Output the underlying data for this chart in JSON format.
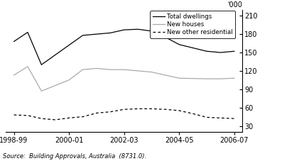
{
  "total_x": [
    0,
    0.5,
    1,
    2,
    2.5,
    3,
    3.5,
    4,
    4.5,
    5,
    5.5,
    6,
    7,
    7.5,
    8
  ],
  "total_y": [
    168,
    183,
    130,
    162,
    178,
    180,
    182,
    187,
    188,
    185,
    175,
    163,
    152,
    150,
    152
  ],
  "houses_x": [
    0,
    0.5,
    1,
    2,
    2.5,
    3,
    3.5,
    4,
    4.5,
    5,
    5.5,
    6,
    7,
    7.5,
    8
  ],
  "houses_y": [
    113,
    127,
    87,
    105,
    122,
    124,
    122,
    122,
    120,
    118,
    113,
    108,
    107,
    107,
    108
  ],
  "other_x": [
    0,
    0.5,
    1,
    1.5,
    2,
    2.5,
    3,
    3.5,
    4,
    4.5,
    5,
    5.5,
    6,
    6.5,
    7,
    7.5,
    8
  ],
  "other_y": [
    48,
    47,
    42,
    40,
    43,
    45,
    51,
    53,
    57,
    58,
    58,
    57,
    55,
    50,
    44,
    43,
    42
  ],
  "xlim": [
    -0.3,
    8.3
  ],
  "ylim": [
    20,
    220
  ],
  "yticks": [
    30,
    60,
    90,
    120,
    150,
    180,
    210
  ],
  "xtick_pos": [
    0,
    2,
    4,
    6,
    8
  ],
  "xtick_labels": [
    "1998-99",
    "2000-01",
    "2002-03",
    "2004-05",
    "2006-07"
  ],
  "ylabel_top": "'000",
  "source_text": "Source:  Building Approvals, Australia  (8731.0).",
  "color_total": "#000000",
  "color_houses": "#aaaaaa",
  "color_other": "#000000",
  "legend_labels": [
    "Total dwellings",
    "New houses",
    "New other residential"
  ]
}
